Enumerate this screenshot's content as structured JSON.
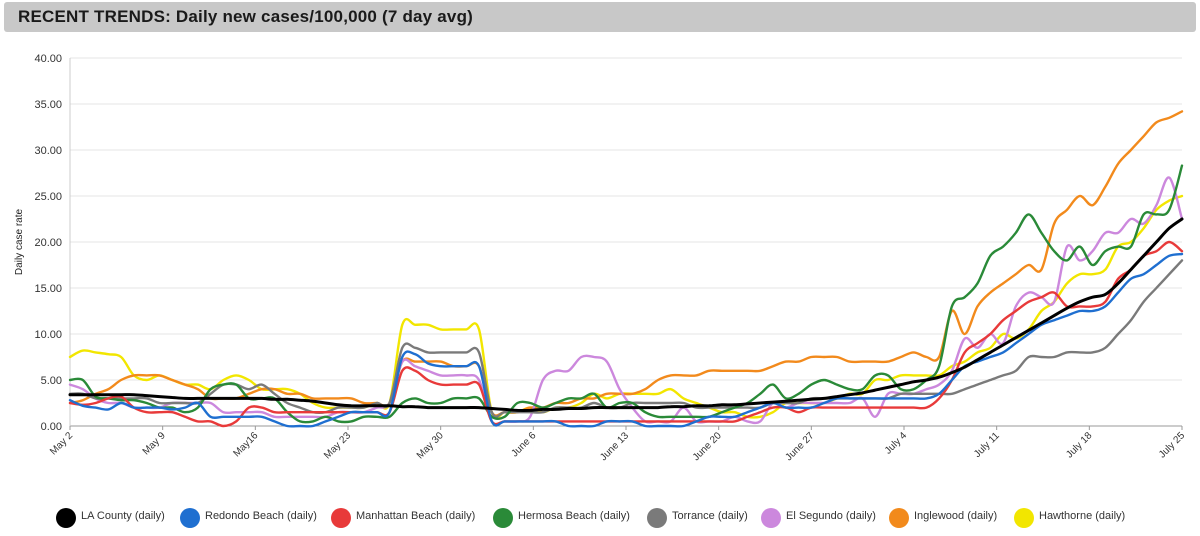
{
  "header": {
    "title": "RECENT TRENDS: Daily new cases/100,000 (7 day avg)"
  },
  "chart_data": {
    "type": "line",
    "title": "RECENT TRENDS: Daily new cases/100,000 (7 day avg)",
    "ylabel": "Daily case rate",
    "xlabel": "",
    "ylim": [
      0,
      40
    ],
    "yticks": [
      "0.00",
      "5.00",
      "10.00",
      "15.00",
      "20.00",
      "25.00",
      "30.00",
      "35.00",
      "40.00"
    ],
    "xticks": [
      "May 2",
      "May 9",
      "May16",
      "May 23",
      "May 30",
      "June 6",
      "June 13",
      "June 20",
      "June 27",
      "July 4",
      "July 11",
      "July 18",
      "July 25"
    ],
    "grid": "horizontal",
    "legend_position": "bottom",
    "x_start": "May 2",
    "x_end": "July 25",
    "series": [
      {
        "name": "LA County (daily)",
        "color": "#000000",
        "values": [
          3.4,
          3.4,
          3.4,
          3.4,
          3.4,
          3.4,
          3.3,
          3.2,
          3.1,
          3.0,
          3.0,
          3.0,
          3.0,
          3.0,
          3.0,
          3.0,
          2.9,
          2.9,
          2.8,
          2.7,
          2.5,
          2.3,
          2.2,
          2.2,
          2.2,
          2.2,
          2.1,
          2.1,
          2.0,
          2.0,
          2.0,
          2.0,
          2.0,
          1.9,
          1.8,
          1.7,
          1.7,
          1.8,
          1.8,
          1.9,
          1.9,
          2.0,
          2.0,
          2.0,
          2.0,
          2.0,
          2.0,
          2.1,
          2.1,
          2.2,
          2.2,
          2.3,
          2.3,
          2.4,
          2.5,
          2.6,
          2.7,
          2.8,
          2.9,
          3.0,
          3.2,
          3.4,
          3.6,
          3.9,
          4.2,
          4.5,
          4.8,
          5.0,
          5.3,
          5.8,
          6.4,
          7.2,
          8.0,
          8.8,
          9.6,
          10.4,
          11.2,
          12.0,
          12.8,
          13.5,
          14.0,
          14.3,
          15.5,
          17.0,
          18.5,
          20.0,
          21.5,
          22.5
        ]
      },
      {
        "name": "Redondo Beach (daily)",
        "color": "#1f6fd0",
        "values": [
          2.8,
          2.2,
          2.0,
          1.8,
          2.5,
          2.0,
          2.0,
          2.0,
          1.8,
          2.0,
          2.5,
          1.0,
          1.0,
          1.0,
          1.0,
          1.0,
          0.5,
          0.0,
          0.0,
          0.0,
          0.5,
          1.0,
          1.5,
          1.5,
          1.5,
          1.5,
          7.5,
          7.8,
          6.8,
          6.5,
          6.5,
          6.5,
          6.5,
          0.5,
          0.5,
          0.5,
          0.5,
          0.5,
          0.5,
          0.0,
          0.0,
          0.0,
          0.5,
          0.5,
          0.5,
          0.0,
          0.0,
          0.0,
          0.0,
          0.5,
          1.0,
          1.0,
          1.0,
          1.5,
          2.0,
          2.5,
          2.0,
          2.0,
          2.0,
          2.5,
          3.0,
          3.0,
          3.0,
          3.0,
          3.0,
          3.0,
          3.0,
          3.0,
          3.5,
          5.0,
          6.5,
          7.0,
          7.5,
          8.0,
          9.0,
          10.0,
          11.0,
          11.5,
          12.0,
          12.5,
          12.5,
          13.0,
          14.5,
          16.0,
          16.5,
          17.5,
          18.5,
          18.7
        ]
      },
      {
        "name": "Manhattan Beach (daily)",
        "color": "#e83a3a",
        "values": [
          2.5,
          2.3,
          2.5,
          3.0,
          3.2,
          2.0,
          1.5,
          1.5,
          1.5,
          1.0,
          0.5,
          0.5,
          0.0,
          0.5,
          2.0,
          2.0,
          1.5,
          1.5,
          1.5,
          1.5,
          1.5,
          1.5,
          1.5,
          1.5,
          1.5,
          1.5,
          6.0,
          6.0,
          5.0,
          4.5,
          4.5,
          4.5,
          4.5,
          0.5,
          0.5,
          0.5,
          0.5,
          0.5,
          0.5,
          0.5,
          0.5,
          0.5,
          0.5,
          0.5,
          0.5,
          0.5,
          0.5,
          0.5,
          0.5,
          0.5,
          0.5,
          0.5,
          0.5,
          1.0,
          1.5,
          2.0,
          2.0,
          1.5,
          2.0,
          2.0,
          2.0,
          2.0,
          2.0,
          2.0,
          2.0,
          2.0,
          2.0,
          2.0,
          3.0,
          5.0,
          8.0,
          9.0,
          10.0,
          11.5,
          12.5,
          13.5,
          14.0,
          14.5,
          13.0,
          13.0,
          13.0,
          13.5,
          16.0,
          17.0,
          18.5,
          19.0,
          20.0,
          19.0
        ]
      },
      {
        "name": "Hermosa Beach (daily)",
        "color": "#2a8a38",
        "values": [
          5.0,
          5.0,
          3.2,
          3.0,
          2.8,
          2.8,
          2.5,
          2.0,
          2.0,
          1.5,
          2.0,
          4.0,
          4.5,
          4.5,
          3.0,
          3.0,
          3.0,
          1.5,
          0.5,
          0.5,
          1.0,
          0.5,
          0.5,
          1.0,
          1.0,
          1.0,
          2.5,
          3.0,
          2.5,
          2.5,
          3.0,
          3.0,
          3.0,
          1.0,
          1.0,
          2.5,
          2.5,
          2.0,
          2.5,
          3.0,
          3.0,
          3.5,
          2.0,
          2.5,
          2.5,
          1.5,
          1.0,
          1.0,
          1.0,
          1.0,
          1.0,
          1.5,
          2.0,
          2.5,
          3.5,
          4.5,
          3.0,
          3.5,
          4.5,
          5.0,
          4.5,
          4.0,
          4.0,
          5.5,
          5.5,
          4.0,
          4.0,
          5.0,
          6.5,
          13.0,
          14.0,
          15.5,
          18.5,
          19.5,
          21.0,
          23.0,
          21.0,
          19.0,
          18.0,
          19.5,
          17.5,
          19.0,
          19.5,
          19.5,
          23.0,
          23.0,
          23.5,
          28.3
        ]
      },
      {
        "name": "Torrance (daily)",
        "color": "#7a7a7a",
        "values": [
          3.5,
          3.5,
          3.0,
          3.0,
          3.0,
          3.0,
          3.0,
          2.5,
          2.5,
          2.5,
          2.5,
          3.5,
          4.5,
          4.5,
          4.0,
          4.5,
          3.5,
          2.5,
          2.0,
          1.5,
          1.5,
          2.0,
          2.0,
          2.0,
          2.5,
          2.5,
          8.5,
          8.5,
          8.0,
          8.0,
          8.0,
          8.0,
          8.0,
          1.5,
          1.5,
          1.5,
          1.5,
          1.5,
          2.0,
          2.0,
          2.0,
          2.5,
          2.0,
          2.0,
          2.5,
          2.5,
          2.5,
          2.5,
          2.5,
          2.0,
          2.0,
          2.0,
          2.0,
          2.0,
          2.0,
          2.5,
          2.5,
          2.5,
          3.0,
          3.0,
          3.0,
          3.0,
          3.0,
          3.0,
          3.0,
          3.5,
          3.5,
          3.5,
          3.5,
          3.5,
          4.0,
          4.5,
          5.0,
          5.5,
          6.0,
          7.5,
          7.5,
          7.5,
          8.0,
          8.0,
          8.0,
          8.5,
          10.0,
          11.5,
          13.5,
          15.0,
          16.5,
          18.0
        ]
      },
      {
        "name": "El Segundo (daily)",
        "color": "#cc88dd",
        "values": [
          4.5,
          4.0,
          3.0,
          2.5,
          2.5,
          2.0,
          2.0,
          2.0,
          2.5,
          2.5,
          2.5,
          2.5,
          1.5,
          1.5,
          1.5,
          1.5,
          1.0,
          1.0,
          1.0,
          1.0,
          1.0,
          1.5,
          1.5,
          1.5,
          2.0,
          2.5,
          7.0,
          6.5,
          6.0,
          5.5,
          5.5,
          5.5,
          5.0,
          0.5,
          0.5,
          0.5,
          1.0,
          5.0,
          6.0,
          6.0,
          7.5,
          7.5,
          7.0,
          4.0,
          2.0,
          0.5,
          0.5,
          0.5,
          2.0,
          0.5,
          0.5,
          0.5,
          1.0,
          0.5,
          0.5,
          2.5,
          2.0,
          2.5,
          2.5,
          2.5,
          2.5,
          2.5,
          3.0,
          1.0,
          3.5,
          3.5,
          3.5,
          4.0,
          4.5,
          6.0,
          9.5,
          8.5,
          10.0,
          9.0,
          13.0,
          14.5,
          14.0,
          13.5,
          19.5,
          18.0,
          19.0,
          21.0,
          21.0,
          22.5,
          22.0,
          24.0,
          27.0,
          22.5
        ]
      },
      {
        "name": "Inglewood (daily)",
        "color": "#f28a1c",
        "values": [
          2.5,
          2.8,
          3.5,
          4.0,
          5.0,
          5.5,
          5.5,
          5.5,
          5.0,
          4.5,
          4.0,
          3.0,
          3.0,
          3.0,
          3.5,
          4.0,
          4.0,
          3.5,
          3.5,
          3.0,
          3.0,
          3.0,
          3.0,
          2.5,
          2.5,
          2.5,
          7.0,
          7.0,
          7.0,
          7.0,
          6.5,
          6.5,
          6.5,
          1.5,
          1.5,
          1.5,
          2.0,
          2.0,
          2.5,
          2.5,
          3.0,
          3.0,
          3.5,
          3.5,
          3.5,
          4.0,
          5.0,
          5.5,
          5.5,
          5.5,
          6.0,
          6.0,
          6.0,
          6.0,
          6.0,
          6.5,
          7.0,
          7.0,
          7.5,
          7.5,
          7.5,
          7.0,
          7.0,
          7.0,
          7.0,
          7.5,
          8.0,
          7.5,
          7.5,
          12.5,
          10.0,
          13.0,
          14.5,
          15.5,
          16.5,
          17.5,
          17.0,
          22.0,
          23.5,
          25.0,
          24.0,
          26.0,
          28.5,
          30.0,
          31.5,
          33.0,
          33.5,
          34.2
        ]
      },
      {
        "name": "Hawthorne (daily)",
        "color": "#f2e600",
        "values": [
          7.5,
          8.2,
          8.0,
          7.8,
          7.5,
          5.5,
          5.0,
          5.5,
          5.0,
          4.5,
          4.5,
          4.0,
          5.0,
          5.5,
          5.0,
          4.0,
          4.0,
          4.0,
          3.5,
          2.5,
          2.0,
          2.0,
          2.0,
          2.0,
          2.5,
          2.5,
          11.0,
          11.0,
          11.0,
          10.5,
          10.5,
          10.5,
          10.5,
          1.5,
          1.5,
          1.5,
          2.0,
          1.5,
          2.0,
          2.0,
          2.5,
          3.5,
          3.0,
          3.5,
          3.5,
          3.5,
          3.5,
          4.0,
          3.0,
          2.5,
          2.0,
          1.5,
          1.5,
          1.0,
          1.0,
          1.5,
          2.5,
          2.5,
          2.5,
          2.5,
          3.0,
          3.5,
          3.5,
          5.0,
          5.0,
          5.5,
          5.5,
          5.5,
          5.5,
          6.5,
          7.0,
          8.0,
          8.5,
          10.0,
          9.5,
          10.5,
          12.5,
          13.5,
          15.5,
          16.5,
          16.5,
          17.0,
          19.5,
          20.0,
          21.5,
          23.5,
          24.5,
          25.0
        ]
      }
    ]
  }
}
